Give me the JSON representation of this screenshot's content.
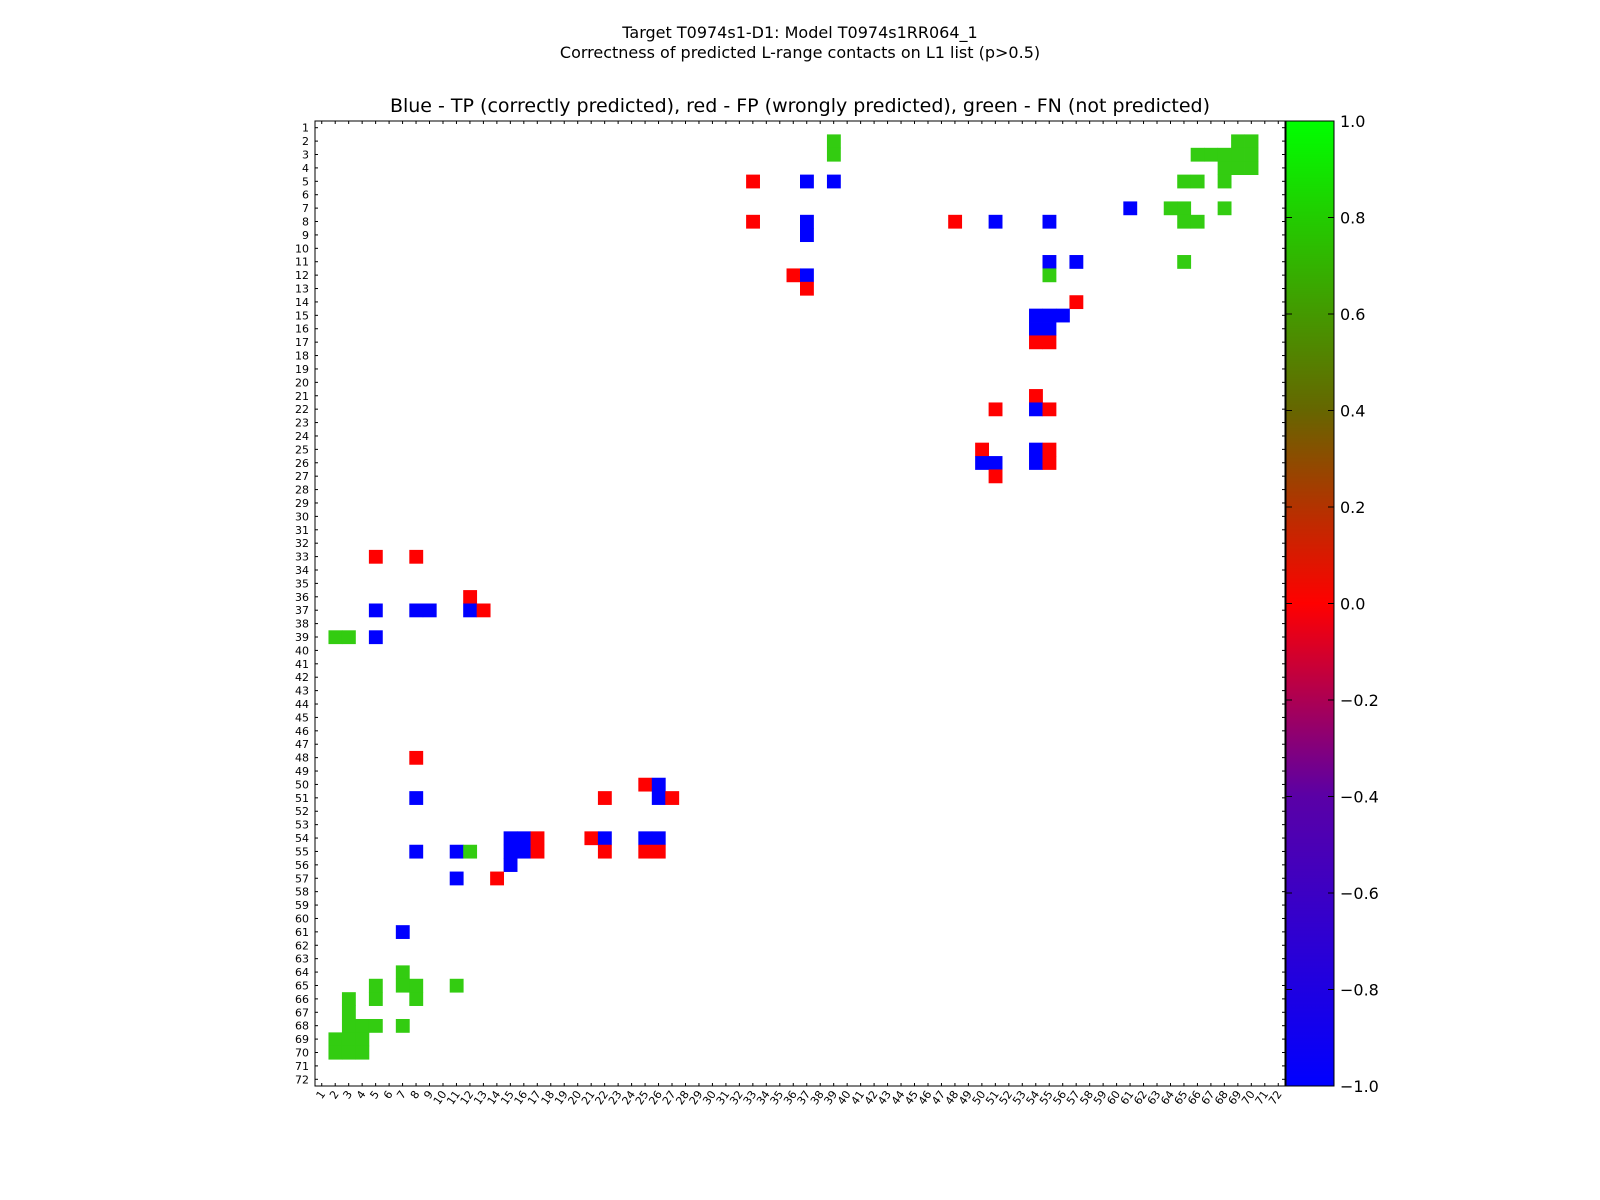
{
  "chart_data": {
    "type": "heatmap",
    "title_line1": "Target T0974s1-D1: Model T0974s1RR064_1",
    "title_line2": "Correctness of predicted L-range contacts on L1 list (p>0.5)",
    "subtitle": "Blue - TP (correctly predicted), red - FP (wrongly predicted), green - FN (not predicted)",
    "axis_range": [
      1,
      72
    ],
    "colorbar": {
      "min": -1.0,
      "max": 1.0,
      "ticks": [
        "1.0",
        "0.8",
        "0.6",
        "0.4",
        "0.2",
        "0.0",
        "−0.2",
        "−0.4",
        "−0.6",
        "−0.8",
        "−1.0"
      ],
      "tick_values": [
        1.0,
        0.8,
        0.6,
        0.4,
        0.2,
        0.0,
        -0.2,
        -0.4,
        -0.6,
        -0.8,
        -1.0
      ],
      "colors": {
        "green": "#33cc11",
        "red": "#ff0000",
        "blue": "#0000ff"
      }
    },
    "legend_values": {
      "TP": -1,
      "FP": 0,
      "FN": 0.8
    },
    "cells": [
      [
        2,
        39,
        "FN"
      ],
      [
        2,
        69,
        "FN"
      ],
      [
        2,
        70,
        "FN"
      ],
      [
        3,
        39,
        "FN"
      ],
      [
        3,
        66,
        "FN"
      ],
      [
        3,
        67,
        "FN"
      ],
      [
        3,
        68,
        "FN"
      ],
      [
        3,
        69,
        "FN"
      ],
      [
        3,
        70,
        "FN"
      ],
      [
        4,
        68,
        "FN"
      ],
      [
        4,
        69,
        "FN"
      ],
      [
        4,
        70,
        "FN"
      ],
      [
        5,
        33,
        "FP"
      ],
      [
        5,
        37,
        "TP"
      ],
      [
        5,
        39,
        "TP"
      ],
      [
        5,
        65,
        "FN"
      ],
      [
        5,
        66,
        "FN"
      ],
      [
        5,
        68,
        "FN"
      ],
      [
        7,
        61,
        "TP"
      ],
      [
        7,
        64,
        "FN"
      ],
      [
        7,
        65,
        "FN"
      ],
      [
        7,
        68,
        "FN"
      ],
      [
        8,
        33,
        "FP"
      ],
      [
        8,
        37,
        "TP"
      ],
      [
        8,
        48,
        "FP"
      ],
      [
        8,
        51,
        "TP"
      ],
      [
        8,
        55,
        "TP"
      ],
      [
        8,
        65,
        "FN"
      ],
      [
        8,
        66,
        "FN"
      ],
      [
        9,
        37,
        "TP"
      ],
      [
        11,
        55,
        "TP"
      ],
      [
        11,
        57,
        "TP"
      ],
      [
        11,
        65,
        "FN"
      ],
      [
        12,
        36,
        "FP"
      ],
      [
        12,
        37,
        "TP"
      ],
      [
        12,
        55,
        "FN"
      ],
      [
        13,
        37,
        "FP"
      ],
      [
        14,
        57,
        "FP"
      ],
      [
        15,
        54,
        "TP"
      ],
      [
        15,
        55,
        "TP"
      ],
      [
        15,
        56,
        "TP"
      ],
      [
        16,
        54,
        "TP"
      ],
      [
        16,
        55,
        "TP"
      ],
      [
        17,
        54,
        "FP"
      ],
      [
        17,
        55,
        "FP"
      ],
      [
        21,
        54,
        "FP"
      ],
      [
        22,
        51,
        "FP"
      ],
      [
        22,
        54,
        "TP"
      ],
      [
        22,
        55,
        "FP"
      ],
      [
        25,
        50,
        "FP"
      ],
      [
        25,
        54,
        "TP"
      ],
      [
        25,
        55,
        "FP"
      ],
      [
        26,
        50,
        "TP"
      ],
      [
        26,
        51,
        "TP"
      ],
      [
        26,
        54,
        "TP"
      ],
      [
        26,
        55,
        "FP"
      ],
      [
        27,
        51,
        "FP"
      ],
      [
        33,
        5,
        "FP"
      ],
      [
        33,
        8,
        "FP"
      ],
      [
        36,
        12,
        "FP"
      ],
      [
        37,
        5,
        "TP"
      ],
      [
        37,
        8,
        "TP"
      ],
      [
        37,
        9,
        "TP"
      ],
      [
        37,
        12,
        "TP"
      ],
      [
        37,
        13,
        "FP"
      ],
      [
        39,
        2,
        "FN"
      ],
      [
        39,
        3,
        "FN"
      ],
      [
        39,
        5,
        "TP"
      ],
      [
        48,
        8,
        "FP"
      ],
      [
        50,
        25,
        "FP"
      ],
      [
        50,
        26,
        "TP"
      ],
      [
        51,
        8,
        "TP"
      ],
      [
        51,
        22,
        "FP"
      ],
      [
        51,
        26,
        "TP"
      ],
      [
        51,
        27,
        "FP"
      ],
      [
        54,
        15,
        "TP"
      ],
      [
        54,
        16,
        "TP"
      ],
      [
        54,
        17,
        "FP"
      ],
      [
        54,
        21,
        "FP"
      ],
      [
        54,
        22,
        "TP"
      ],
      [
        54,
        25,
        "TP"
      ],
      [
        54,
        26,
        "TP"
      ],
      [
        55,
        8,
        "TP"
      ],
      [
        55,
        11,
        "TP"
      ],
      [
        55,
        12,
        "FN"
      ],
      [
        55,
        15,
        "TP"
      ],
      [
        55,
        16,
        "TP"
      ],
      [
        55,
        17,
        "FP"
      ],
      [
        55,
        22,
        "FP"
      ],
      [
        55,
        25,
        "FP"
      ],
      [
        55,
        26,
        "FP"
      ],
      [
        56,
        15,
        "TP"
      ],
      [
        57,
        11,
        "TP"
      ],
      [
        57,
        14,
        "FP"
      ],
      [
        61,
        7,
        "TP"
      ],
      [
        64,
        7,
        "FN"
      ],
      [
        65,
        5,
        "FN"
      ],
      [
        65,
        7,
        "FN"
      ],
      [
        65,
        8,
        "FN"
      ],
      [
        65,
        11,
        "FN"
      ],
      [
        66,
        3,
        "FN"
      ],
      [
        66,
        5,
        "FN"
      ],
      [
        66,
        8,
        "FN"
      ],
      [
        67,
        3,
        "FN"
      ],
      [
        68,
        3,
        "FN"
      ],
      [
        68,
        4,
        "FN"
      ],
      [
        68,
        5,
        "FN"
      ],
      [
        68,
        7,
        "FN"
      ],
      [
        69,
        2,
        "FN"
      ],
      [
        69,
        3,
        "FN"
      ],
      [
        69,
        4,
        "FN"
      ],
      [
        70,
        2,
        "FN"
      ],
      [
        70,
        3,
        "FN"
      ],
      [
        70,
        4,
        "FN"
      ]
    ]
  }
}
